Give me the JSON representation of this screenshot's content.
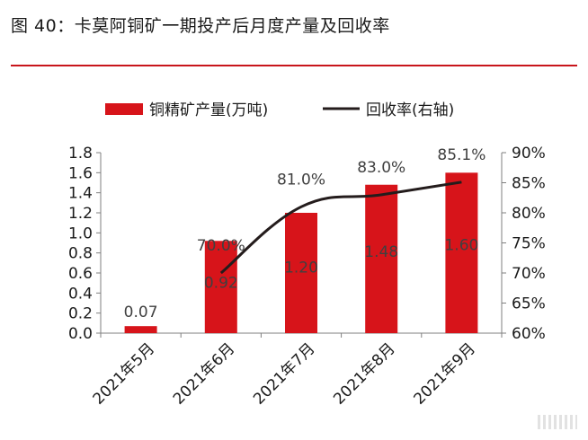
{
  "figure": {
    "title": "图 40：卡莫阿铜矿一期投产后月度产量及回收率",
    "rule_color": "#c8151b"
  },
  "chart_data": {
    "type": "bar",
    "categories": [
      "2021年5月",
      "2021年6月",
      "2021年7月",
      "2021年8月",
      "2021年9月"
    ],
    "series": [
      {
        "name": "铜精矿产量(万吨)",
        "type": "bar",
        "axis": "left",
        "color": "#d7141a",
        "values": [
          0.07,
          0.92,
          1.2,
          1.48,
          1.6
        ],
        "labels": [
          "0.07",
          "0.92",
          "1.20",
          "1.48",
          "1.60"
        ]
      },
      {
        "name": "回收率(右轴)",
        "type": "line",
        "axis": "right",
        "color": "#241c1c",
        "values": [
          null,
          70.0,
          81.0,
          83.0,
          85.1
        ],
        "labels": [
          "",
          "70.0%",
          "81.0%",
          "83.0%",
          "85.1%"
        ]
      }
    ],
    "y_left": {
      "min": 0,
      "max": 1.8,
      "ticks": [
        "0.0",
        "0.2",
        "0.4",
        "0.6",
        "0.8",
        "1.0",
        "1.2",
        "1.4",
        "1.6",
        "1.8"
      ]
    },
    "y_right": {
      "min": 60,
      "max": 90,
      "ticks": [
        "60%",
        "65%",
        "70%",
        "75%",
        "80%",
        "85%",
        "90%"
      ]
    },
    "legend_position": "top",
    "grid": false
  }
}
